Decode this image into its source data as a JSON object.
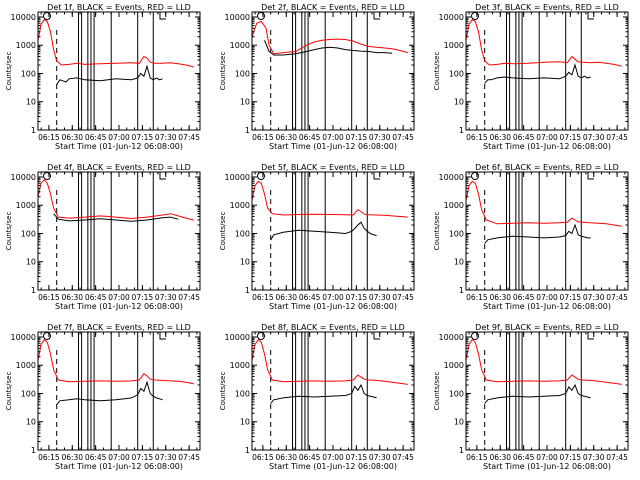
{
  "figure": {
    "x_ticks": [
      "06:15",
      "06:30",
      "06:45",
      "07:00",
      "07:15",
      "07:30",
      "07:45"
    ],
    "y_ticks": [
      "1",
      "10",
      "100",
      "1000",
      "10000"
    ],
    "ylabel": "Counts/sec",
    "xlabel": "Start Time (01-Jun-12 06:08:00)",
    "colors": {
      "events": "#000000",
      "lld": "#ff0000",
      "axes": "#000000"
    }
  },
  "chart_data": [
    {
      "type": "line",
      "title": "Det 1f, BLACK = Events, RED = LLD",
      "ylabel": "Counts/sec",
      "xlabel": "Start Time (01-Jun-12 06:08:00)",
      "x_unit": "minutes after 06:08",
      "yscale": "log",
      "ylim": [
        1,
        15000
      ],
      "xlim": [
        0,
        104
      ],
      "dashed_marker_x": 12,
      "vertical_lines_x": [
        26,
        28,
        32,
        34,
        36,
        47,
        64,
        74
      ],
      "series": [
        {
          "name": "LLD",
          "x": [
            0,
            2,
            4,
            6,
            8,
            10,
            12,
            15,
            20,
            25,
            30,
            40,
            50,
            60,
            65,
            68,
            70,
            72,
            75,
            80,
            85,
            90,
            95,
            100
          ],
          "y": [
            1500,
            5500,
            8000,
            7000,
            3000,
            700,
            280,
            200,
            210,
            230,
            210,
            220,
            230,
            240,
            230,
            400,
            350,
            250,
            230,
            230,
            240,
            220,
            200,
            170
          ]
        },
        {
          "name": "Events",
          "x": [
            12,
            14,
            16,
            18,
            20,
            25,
            30,
            40,
            50,
            60,
            64,
            66,
            68,
            70,
            72,
            74,
            76,
            78,
            80
          ],
          "y": [
            40,
            60,
            55,
            50,
            65,
            70,
            60,
            55,
            65,
            60,
            70,
            100,
            80,
            180,
            70,
            60,
            70,
            60,
            65
          ]
        }
      ]
    },
    {
      "type": "line",
      "title": "Det 2f, BLACK = Events, RED = LLD",
      "ylabel": "Counts/sec",
      "xlabel": "Start Time (01-Jun-12 06:08:00)",
      "x_unit": "minutes after 06:08",
      "yscale": "log",
      "ylim": [
        1,
        15000
      ],
      "xlim": [
        0,
        104
      ],
      "dashed_marker_x": 12,
      "vertical_lines_x": [
        26,
        28,
        32,
        34,
        36,
        47,
        64,
        74
      ],
      "series": [
        {
          "name": "LLD",
          "x": [
            0,
            3,
            6,
            9,
            11,
            14,
            20,
            28,
            35,
            40,
            45,
            50,
            55,
            60,
            65,
            70,
            75,
            80,
            85,
            90,
            95,
            100
          ],
          "y": [
            2000,
            6000,
            7000,
            4000,
            1000,
            500,
            550,
            600,
            1000,
            1300,
            1500,
            1600,
            1650,
            1600,
            1400,
            1100,
            900,
            850,
            800,
            750,
            650,
            550
          ]
        },
        {
          "name": "Events",
          "x": [
            8,
            11,
            14,
            20,
            28,
            35,
            40,
            45,
            50,
            55,
            60,
            65,
            70,
            75,
            80,
            85,
            90
          ],
          "y": [
            1500,
            600,
            450,
            450,
            500,
            600,
            700,
            800,
            850,
            800,
            700,
            650,
            620,
            600,
            550,
            550,
            520
          ]
        }
      ]
    },
    {
      "type": "line",
      "title": "Det 3f, BLACK = Events, RED = LLD",
      "ylabel": "Counts/sec",
      "xlabel": "Start Time (01-Jun-12 06:08:00)",
      "x_unit": "minutes after 06:08",
      "yscale": "log",
      "ylim": [
        1,
        15000
      ],
      "xlim": [
        0,
        104
      ],
      "dashed_marker_x": 12,
      "vertical_lines_x": [
        26,
        28,
        32,
        34,
        36,
        47,
        64,
        74
      ],
      "series": [
        {
          "name": "LLD",
          "x": [
            0,
            2,
            4,
            6,
            8,
            10,
            12,
            15,
            20,
            25,
            30,
            40,
            50,
            60,
            65,
            68,
            70,
            72,
            75,
            80,
            85,
            90,
            95,
            100
          ],
          "y": [
            1500,
            5500,
            8000,
            7000,
            3000,
            700,
            280,
            200,
            210,
            230,
            220,
            230,
            250,
            260,
            240,
            400,
            320,
            260,
            250,
            240,
            250,
            230,
            210,
            180
          ]
        },
        {
          "name": "Events",
          "x": [
            12,
            14,
            16,
            20,
            25,
            30,
            40,
            50,
            60,
            64,
            66,
            68,
            70,
            72,
            74,
            76,
            78,
            80
          ],
          "y": [
            45,
            60,
            60,
            70,
            75,
            70,
            65,
            70,
            65,
            80,
            110,
            90,
            200,
            80,
            70,
            80,
            70,
            75
          ]
        }
      ]
    },
    {
      "type": "line",
      "title": "Det 4f, BLACK = Events, RED = LLD",
      "ylabel": "Counts/sec",
      "xlabel": "Start Time (01-Jun-12 06:08:00)",
      "x_unit": "minutes after 06:08",
      "yscale": "log",
      "ylim": [
        1,
        15000
      ],
      "xlim": [
        0,
        104
      ],
      "dashed_marker_x": 12,
      "vertical_lines_x": [
        26,
        28,
        32,
        34,
        36,
        47,
        64,
        74
      ],
      "series": [
        {
          "name": "LLD",
          "x": [
            0,
            2,
            4,
            6,
            8,
            10,
            13,
            20,
            30,
            40,
            50,
            60,
            70,
            80,
            85,
            90,
            95,
            100
          ],
          "y": [
            2000,
            6000,
            8000,
            6000,
            2500,
            800,
            380,
            350,
            380,
            420,
            380,
            340,
            380,
            450,
            500,
            420,
            350,
            300
          ]
        },
        {
          "name": "Events",
          "x": [
            10,
            13,
            20,
            30,
            40,
            50,
            60,
            70,
            80,
            85,
            90
          ],
          "y": [
            500,
            320,
            280,
            300,
            330,
            300,
            270,
            300,
            360,
            380,
            320
          ]
        }
      ]
    },
    {
      "type": "line",
      "title": "Det 5f, BLACK = Events, RED = LLD",
      "ylabel": "Counts/sec",
      "xlabel": "Start Time (01-Jun-12 06:08:00)",
      "x_unit": "minutes after 06:08",
      "yscale": "log",
      "ylim": [
        1,
        15000
      ],
      "xlim": [
        0,
        104
      ],
      "dashed_marker_x": 12,
      "vertical_lines_x": [
        26,
        28,
        32,
        34,
        36,
        47,
        64,
        74
      ],
      "series": [
        {
          "name": "LLD",
          "x": [
            0,
            2,
            4,
            6,
            8,
            10,
            13,
            20,
            30,
            40,
            50,
            60,
            65,
            68,
            70,
            72,
            75,
            80,
            85,
            90,
            95,
            100
          ],
          "y": [
            1500,
            5000,
            7000,
            6000,
            2500,
            800,
            500,
            450,
            470,
            480,
            470,
            460,
            450,
            700,
            600,
            480,
            460,
            450,
            440,
            420,
            400,
            380
          ]
        },
        {
          "name": "Events",
          "x": [
            12,
            14,
            20,
            25,
            30,
            40,
            50,
            60,
            64,
            66,
            68,
            70,
            72,
            74,
            76,
            78,
            80
          ],
          "y": [
            60,
            90,
            110,
            120,
            130,
            120,
            110,
            100,
            120,
            150,
            200,
            250,
            150,
            120,
            100,
            90,
            85
          ]
        }
      ]
    },
    {
      "type": "line",
      "title": "Det 6f, BLACK = Events, RED = LLD",
      "ylabel": "Counts/sec",
      "xlabel": "Start Time (01-Jun-12 06:08:00)",
      "x_unit": "minutes after 06:08",
      "yscale": "log",
      "ylim": [
        1,
        15000
      ],
      "xlim": [
        0,
        104
      ],
      "dashed_marker_x": 12,
      "vertical_lines_x": [
        26,
        28,
        32,
        34,
        36,
        47,
        64,
        74
      ],
      "series": [
        {
          "name": "LLD",
          "x": [
            0,
            2,
            4,
            6,
            8,
            10,
            13,
            20,
            30,
            40,
            50,
            60,
            65,
            68,
            70,
            72,
            75,
            80,
            85,
            90,
            95,
            100
          ],
          "y": [
            1500,
            5000,
            7000,
            6000,
            2500,
            700,
            300,
            220,
            230,
            240,
            230,
            240,
            250,
            350,
            300,
            260,
            250,
            240,
            230,
            220,
            200,
            180
          ]
        },
        {
          "name": "Events",
          "x": [
            12,
            14,
            20,
            25,
            30,
            40,
            50,
            60,
            64,
            66,
            68,
            70,
            72,
            74,
            76,
            78,
            80
          ],
          "y": [
            45,
            60,
            70,
            75,
            80,
            75,
            70,
            75,
            85,
            120,
            100,
            200,
            90,
            80,
            75,
            70,
            70
          ]
        }
      ]
    },
    {
      "type": "line",
      "title": "Det 7f, BLACK = Events, RED = LLD",
      "ylabel": "Counts/sec",
      "xlabel": "Start Time (01-Jun-12 06:08:00)",
      "x_unit": "minutes after 06:08",
      "yscale": "log",
      "ylim": [
        1,
        15000
      ],
      "xlim": [
        0,
        104
      ],
      "dashed_marker_x": 12,
      "vertical_lines_x": [
        26,
        28,
        32,
        34,
        36,
        47,
        64,
        74
      ],
      "series": [
        {
          "name": "LLD",
          "x": [
            0,
            2,
            4,
            6,
            8,
            10,
            13,
            20,
            30,
            40,
            50,
            60,
            65,
            68,
            70,
            72,
            75,
            80,
            85,
            90,
            95,
            100
          ],
          "y": [
            1500,
            5500,
            8000,
            6500,
            2500,
            700,
            300,
            260,
            270,
            280,
            270,
            280,
            300,
            500,
            420,
            320,
            300,
            290,
            280,
            270,
            250,
            220
          ]
        },
        {
          "name": "Events",
          "x": [
            12,
            14,
            20,
            25,
            30,
            40,
            50,
            60,
            64,
            66,
            68,
            70,
            72,
            74,
            76,
            78,
            80
          ],
          "y": [
            40,
            55,
            60,
            65,
            60,
            55,
            60,
            70,
            90,
            150,
            120,
            250,
            100,
            80,
            70,
            65,
            60
          ]
        }
      ]
    },
    {
      "type": "line",
      "title": "Det 8f, BLACK = Events, RED = LLD",
      "ylabel": "Counts/sec",
      "xlabel": "Start Time (01-Jun-12 06:08:00)",
      "x_unit": "minutes after 06:08",
      "yscale": "log",
      "ylim": [
        1,
        15000
      ],
      "xlim": [
        0,
        104
      ],
      "dashed_marker_x": 12,
      "vertical_lines_x": [
        26,
        28,
        32,
        34,
        36,
        47,
        64,
        74
      ],
      "series": [
        {
          "name": "LLD",
          "x": [
            0,
            2,
            4,
            6,
            8,
            10,
            13,
            20,
            30,
            40,
            50,
            60,
            65,
            68,
            70,
            72,
            75,
            80,
            85,
            90,
            95,
            100
          ],
          "y": [
            1500,
            5500,
            8000,
            6500,
            2500,
            700,
            300,
            260,
            270,
            280,
            270,
            280,
            300,
            450,
            380,
            320,
            300,
            290,
            270,
            250,
            230,
            210
          ]
        },
        {
          "name": "Events",
          "x": [
            12,
            14,
            20,
            25,
            30,
            40,
            50,
            60,
            64,
            66,
            68,
            70,
            72,
            74,
            76,
            78,
            80
          ],
          "y": [
            45,
            60,
            70,
            75,
            80,
            75,
            80,
            85,
            100,
            180,
            130,
            200,
            100,
            85,
            80,
            75,
            70
          ]
        }
      ]
    },
    {
      "type": "line",
      "title": "Det 9f, BLACK = Events, RED = LLD",
      "ylabel": "Counts/sec",
      "xlabel": "Start Time (01-Jun-12 06:08:00)",
      "x_unit": "minutes after 06:08",
      "yscale": "log",
      "ylim": [
        1,
        15000
      ],
      "xlim": [
        0,
        104
      ],
      "dashed_marker_x": 12,
      "vertical_lines_x": [
        26,
        28,
        32,
        34,
        36,
        47,
        64,
        74
      ],
      "series": [
        {
          "name": "LLD",
          "x": [
            0,
            2,
            4,
            6,
            8,
            10,
            13,
            20,
            30,
            40,
            50,
            60,
            65,
            68,
            70,
            72,
            75,
            80,
            85,
            90,
            95,
            100
          ],
          "y": [
            1500,
            5500,
            8000,
            6500,
            2500,
            700,
            300,
            260,
            270,
            280,
            270,
            280,
            300,
            450,
            380,
            320,
            300,
            290,
            270,
            250,
            230,
            210
          ]
        },
        {
          "name": "Events",
          "x": [
            12,
            14,
            20,
            25,
            30,
            40,
            50,
            60,
            64,
            66,
            68,
            70,
            72,
            74,
            76,
            78,
            80
          ],
          "y": [
            45,
            60,
            70,
            75,
            80,
            75,
            80,
            85,
            100,
            170,
            130,
            200,
            100,
            85,
            80,
            75,
            70
          ]
        }
      ]
    }
  ]
}
